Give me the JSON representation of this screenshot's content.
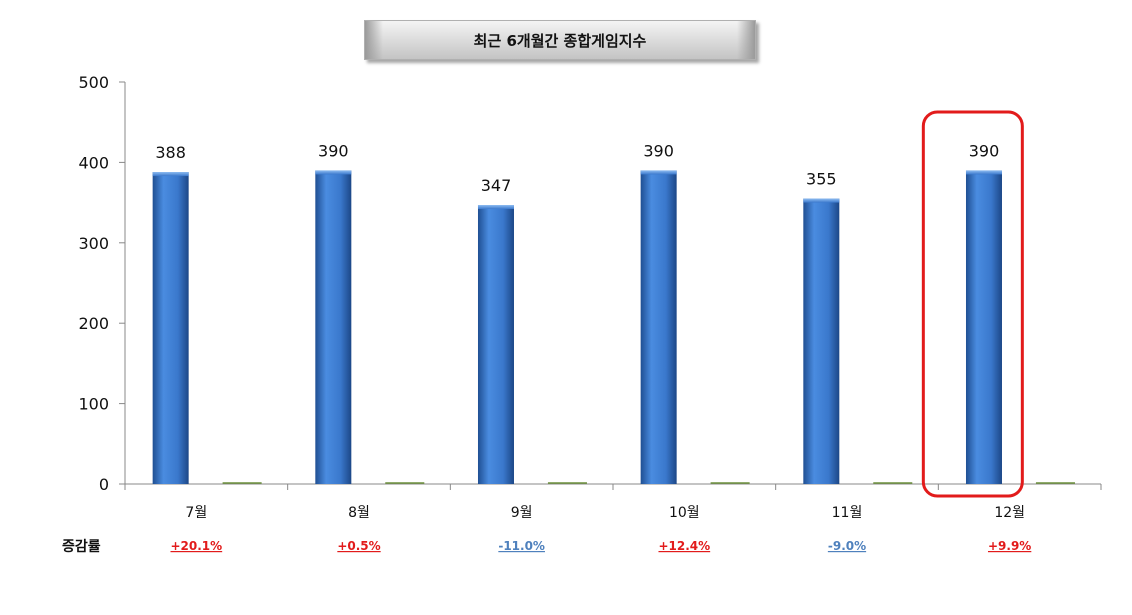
{
  "chart_data": {
    "type": "bar",
    "title": "최근 6개월간 종합게임지수",
    "categories": [
      "7월",
      "8월",
      "9월",
      "10월",
      "11월",
      "12월"
    ],
    "series": [
      {
        "values": [
          388,
          390,
          347,
          390,
          355,
          390
        ]
      }
    ],
    "data_labels": [
      "388",
      "390",
      "347",
      "390",
      "355",
      "390"
    ],
    "ylim": [
      0,
      500
    ],
    "yticks": [
      0,
      100,
      200,
      300,
      400,
      500
    ],
    "grid": false,
    "highlight_category": "12월",
    "highlight_color": "#e21b1b",
    "bar_color": "#3a78cc"
  },
  "change_rate": {
    "label": "증감률",
    "values": [
      "+20.1%",
      "+0.5%",
      "-11.0%",
      "+12.4%",
      "-9.0%",
      "+9.9%"
    ],
    "positive_color": "#e21b1b",
    "negative_color": "#4f81bd"
  }
}
